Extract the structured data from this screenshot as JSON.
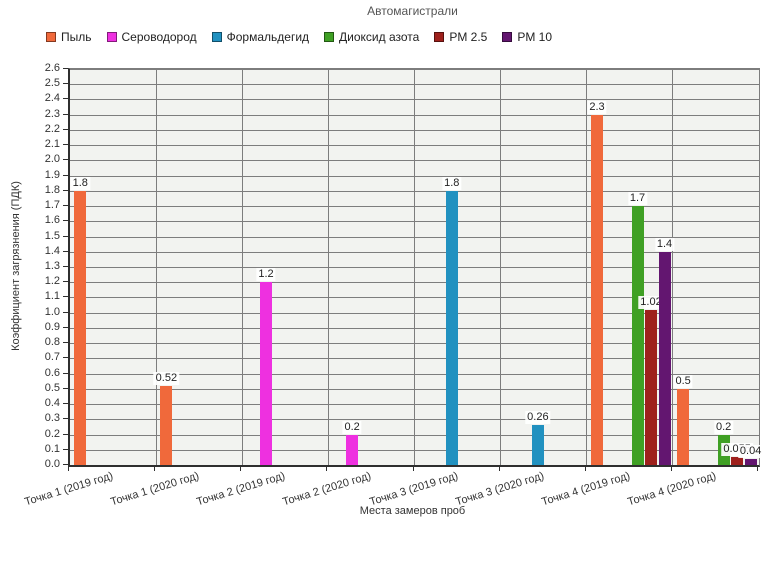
{
  "chart_data": {
    "type": "bar",
    "title": "Автомагистрали",
    "xlabel": "Места замеров проб",
    "ylabel": "Коэффициент загрязнения (ПДК)",
    "ylim": [
      0,
      2.6
    ],
    "y_step": 0.1,
    "grid": true,
    "legend_position": "top",
    "categories": [
      "Точка 1 (2019 год)",
      "Точка 1 (2020 год)",
      "Точка 2 (2019 год)",
      "Точка 2 (2020 год)",
      "Точка 3 (2019 год)",
      "Точка 3 (2020 год)",
      "Точка 4 (2019 год)",
      "Точка 4 (2020 год)"
    ],
    "series": [
      {
        "name": "Пыль",
        "color": "#F0693B",
        "values": [
          1.8,
          0.52,
          null,
          null,
          null,
          null,
          2.3,
          0.5
        ],
        "labels": [
          "1.8",
          "0.52",
          null,
          null,
          null,
          null,
          "2.3",
          "0.5"
        ]
      },
      {
        "name": "Сероводород",
        "color": "#EE30E0",
        "values": [
          null,
          null,
          1.2,
          0.2,
          null,
          null,
          null,
          null
        ],
        "labels": [
          null,
          null,
          "1.2",
          "0.2",
          null,
          null,
          null,
          null
        ]
      },
      {
        "name": "Формальдегид",
        "color": "#2191C0",
        "values": [
          null,
          null,
          null,
          null,
          1.8,
          0.26,
          null,
          null
        ],
        "labels": [
          null,
          null,
          null,
          null,
          "1.8",
          "0.26",
          null,
          null
        ]
      },
      {
        "name": "Диоксид азота",
        "color": "#3FA024",
        "values": [
          null,
          null,
          null,
          null,
          null,
          null,
          1.7,
          0.2
        ],
        "labels": [
          null,
          null,
          null,
          null,
          null,
          null,
          "1.7",
          "0.2"
        ]
      },
      {
        "name": "PM 2.5",
        "color": "#9E201C",
        "values": [
          null,
          null,
          null,
          null,
          null,
          null,
          1.02,
          0.055
        ],
        "labels": [
          null,
          null,
          null,
          null,
          null,
          null,
          "1.02",
          "0.055"
        ]
      },
      {
        "name": "PM 10",
        "color": "#631670",
        "values": [
          null,
          null,
          null,
          null,
          null,
          null,
          1.4,
          0.04
        ],
        "labels": [
          null,
          null,
          null,
          null,
          null,
          null,
          "1.4",
          "0.04"
        ]
      }
    ]
  }
}
